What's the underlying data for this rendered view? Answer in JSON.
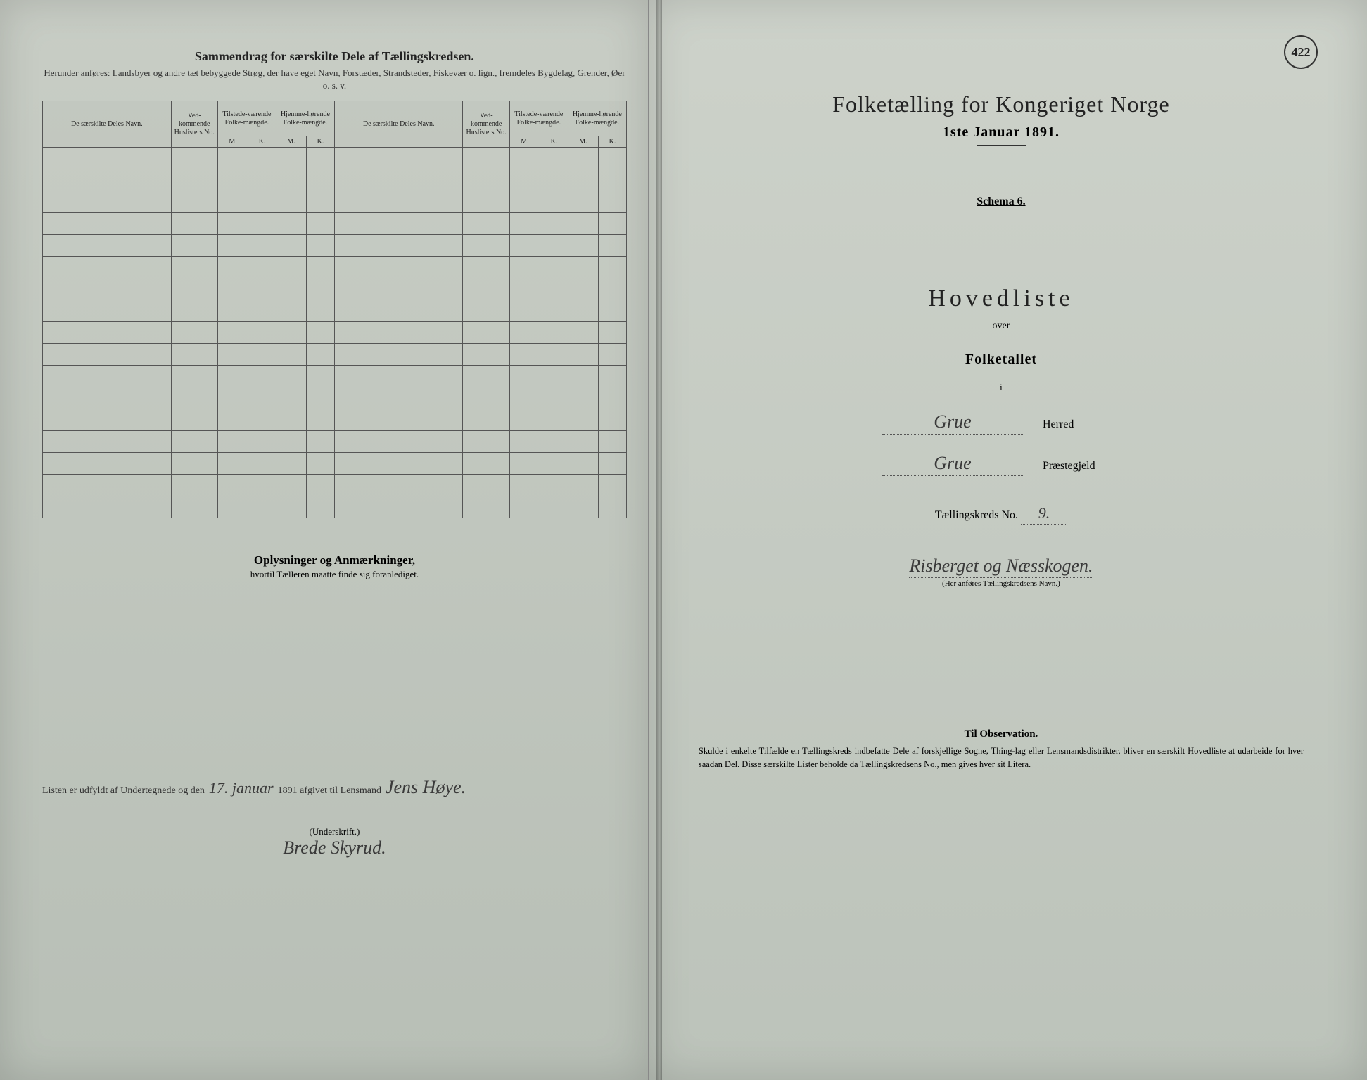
{
  "left": {
    "header_title": "Sammendrag for særskilte Dele af Tællingskredsen.",
    "header_subtitle": "Herunder anføres: Landsbyer og andre tæt bebyggede Strøg, der have eget Navn, Forstæder, Strandsteder, Fiskevær o. lign., fremdeles Bygdelag, Grender, Øer o. s. v.",
    "table": {
      "col_navn": "De særskilte Deles Navn.",
      "col_huslister": "Ved-kommende Huslisters No.",
      "col_tilstede": "Tilstede-værende Folke-mængde.",
      "col_hjemme": "Hjemme-hørende Folke-mængde.",
      "sub_m": "M.",
      "sub_k": "K.",
      "empty_rows": 17
    },
    "oplys_title": "Oplysninger og Anmærkninger,",
    "oplys_sub": "hvortil Tælleren maatte finde sig foranlediget.",
    "bottom_prefix": "Listen er udfyldt af Undertegnede og den",
    "bottom_date_hand": "17. januar",
    "bottom_year": "1891 afgivet til Lensmand",
    "bottom_lensmand_hand": "Jens Høye.",
    "underskrift_label": "(Underskrift.)",
    "underskrift_hand": "Brede Skyrud."
  },
  "right": {
    "page_number": "422",
    "title": "Folketælling for Kongeriget Norge",
    "date": "1ste Januar 1891.",
    "schema": "Schema 6.",
    "hovedliste": "Hovedliste",
    "over": "over",
    "folketallet": "Folketallet",
    "i": "i",
    "herred_value": "Grue",
    "herred_label": "Herred",
    "praestegjeld_value": "Grue",
    "praestegjeld_label": "Præstegjeld",
    "kreds_label": "Tællingskreds No.",
    "kreds_no": "9.",
    "kreds_name": "Risberget og Næsskogen.",
    "kreds_caption": "(Her anføres Tællingskredsens Navn.)",
    "obs_title": "Til Observation.",
    "obs_text": "Skulde i enkelte Tilfælde en Tællingskreds indbefatte Dele af forskjellige Sogne, Thing-lag eller Lensmandsdistrikter, bliver en særskilt Hovedliste at udarbeide for hver saadan Del. Disse særskilte Lister beholde da Tællingskredsens No., men gives hver sit Litera."
  },
  "colors": {
    "paper": "#c8cdc5",
    "ink": "#222222",
    "rule": "#555555",
    "background": "#1a1a1a"
  }
}
